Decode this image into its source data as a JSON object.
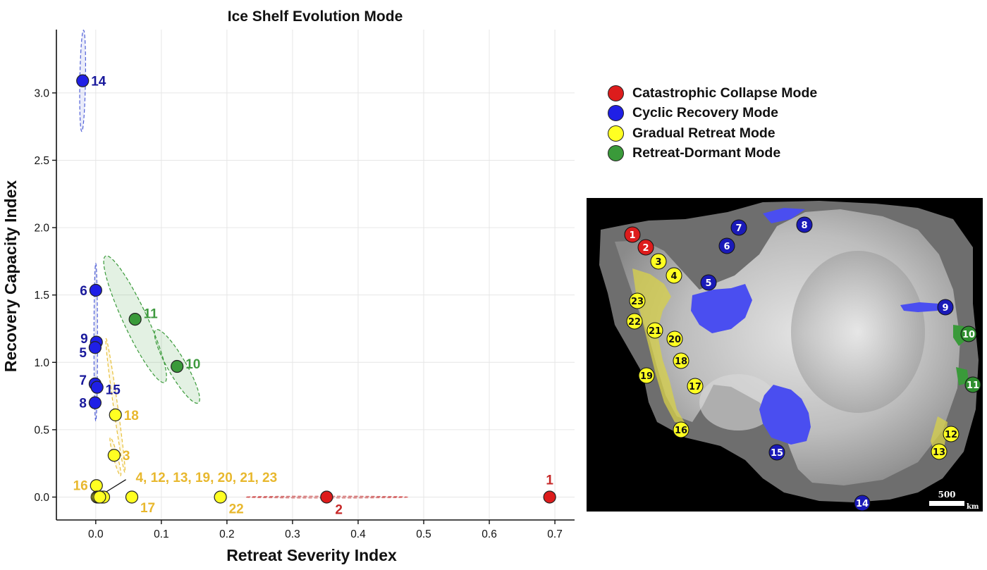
{
  "chart_data": {
    "type": "scatter",
    "title": "Ice Shelf Evolution Mode",
    "xlabel": "Retreat Severity Index",
    "ylabel": "Recovery Capacity Index",
    "xlim": [
      -0.06,
      0.73
    ],
    "ylim": [
      -0.17,
      3.47
    ],
    "xticks": [
      0.0,
      0.1,
      0.2,
      0.3,
      0.4,
      0.5,
      0.6,
      0.7
    ],
    "xtick_labels": [
      "0.0",
      "0.1",
      "0.2",
      "0.3",
      "0.4",
      "0.5",
      "0.6",
      "0.7"
    ],
    "yticks": [
      0.0,
      0.5,
      1.0,
      1.5,
      2.0,
      2.5,
      3.0
    ],
    "ytick_labels": [
      "0.0",
      "0.5",
      "1.0",
      "1.5",
      "2.0",
      "2.5",
      "3.0"
    ],
    "grid": true,
    "legend_position": "right",
    "colors": {
      "red": "#dd1c1c",
      "blue": "#1f1fe6",
      "yellow": "#ffff22",
      "green": "#3a9a3a",
      "red_text": "#c62828",
      "blue_text": "#1a1a9c",
      "yellow_text": "#e8b82e",
      "green_text": "#3f9a3f"
    },
    "series": [
      {
        "name": "Catastrophic Collapse Mode",
        "color": "red",
        "points": [
          {
            "label": "1",
            "x": 0.692,
            "y": 0.0
          },
          {
            "label": "2",
            "x": 0.352,
            "y": 0.0
          }
        ]
      },
      {
        "name": "Cyclic Recovery Mode",
        "color": "blue",
        "points": [
          {
            "label": "14",
            "x": -0.02,
            "y": 3.09
          },
          {
            "label": "6",
            "x": 0.0,
            "y": 1.535
          },
          {
            "label": "9",
            "x": 0.001,
            "y": 1.15
          },
          {
            "label": "5",
            "x": -0.001,
            "y": 1.11
          },
          {
            "label": "7",
            "x": -0.001,
            "y": 0.84
          },
          {
            "label": "15",
            "x": 0.002,
            "y": 0.815
          },
          {
            "label": "8",
            "x": -0.001,
            "y": 0.7
          }
        ]
      },
      {
        "name": "Gradual Retreat Mode",
        "color": "yellow",
        "points": [
          {
            "label": "18",
            "x": 0.03,
            "y": 0.61
          },
          {
            "label": "3",
            "x": 0.028,
            "y": 0.31
          },
          {
            "label": "16",
            "x": 0.001,
            "y": 0.085
          },
          {
            "label": "17",
            "x": 0.055,
            "y": 0.0
          },
          {
            "label": "22",
            "x": 0.19,
            "y": 0.0
          },
          {
            "label": "4",
            "x": 0.002,
            "y": 0.0
          },
          {
            "label": "12",
            "x": 0.005,
            "y": 0.0
          },
          {
            "label": "13",
            "x": 0.008,
            "y": 0.0
          },
          {
            "label": "19",
            "x": 0.01,
            "y": 0.0
          },
          {
            "label": "20",
            "x": 0.012,
            "y": 0.0
          },
          {
            "label": "21",
            "x": 0.004,
            "y": 0.0
          },
          {
            "label": "23",
            "x": 0.006,
            "y": 0.0
          }
        ]
      },
      {
        "name": "Retreat-Dormant Mode",
        "color": "green",
        "points": [
          {
            "label": "11",
            "x": 0.06,
            "y": 1.32
          },
          {
            "label": "10",
            "x": 0.124,
            "y": 0.97
          }
        ]
      }
    ],
    "annotations": [
      {
        "text": "14",
        "color": "blue_text",
        "x": -0.02,
        "y": 3.09,
        "side": "right"
      },
      {
        "text": "6",
        "color": "blue_text",
        "x": 0.0,
        "y": 1.535,
        "side": "left"
      },
      {
        "text": "9",
        "color": "blue_text",
        "x": 0.001,
        "y": 1.18,
        "side": "left"
      },
      {
        "text": "5",
        "color": "blue_text",
        "x": -0.001,
        "y": 1.075,
        "side": "left"
      },
      {
        "text": "7",
        "color": "blue_text",
        "x": -0.001,
        "y": 0.87,
        "side": "left"
      },
      {
        "text": "15",
        "color": "blue_text",
        "x": 0.002,
        "y": 0.8,
        "side": "right"
      },
      {
        "text": "8",
        "color": "blue_text",
        "x": -0.001,
        "y": 0.7,
        "side": "left"
      },
      {
        "text": "11",
        "color": "green_text",
        "x": 0.06,
        "y": 1.365,
        "side": "right"
      },
      {
        "text": "10",
        "color": "green_text",
        "x": 0.124,
        "y": 0.99,
        "side": "right"
      },
      {
        "text": "18",
        "color": "yellow_text",
        "x": 0.03,
        "y": 0.61,
        "side": "right"
      },
      {
        "text": "3",
        "color": "yellow_text",
        "x": 0.028,
        "y": 0.31,
        "side": "right"
      },
      {
        "text": "16",
        "color": "yellow_text",
        "x": 0.001,
        "y": 0.09,
        "side": "left"
      },
      {
        "text": "4, 12, 13, 19, 20, 21, 23",
        "color": "yellow_text",
        "x": 0.048,
        "y": 0.15,
        "side": "right"
      },
      {
        "text": "17",
        "color": "yellow_text",
        "x": 0.055,
        "y": -0.075,
        "side": "right"
      },
      {
        "text": "22",
        "color": "yellow_text",
        "x": 0.19,
        "y": -0.085,
        "side": "right"
      },
      {
        "text": "1",
        "color": "red_text",
        "x": 0.692,
        "y": 0.13,
        "side": "center"
      },
      {
        "text": "2",
        "color": "red_text",
        "x": 0.352,
        "y": -0.09,
        "side": "right"
      }
    ],
    "ellipses": [
      {
        "cx": -0.02,
        "cy": 3.09,
        "rx_px": 4,
        "ry_px": 72,
        "angle": 1,
        "color": "blue"
      },
      {
        "cx": 0.0,
        "cy": 1.15,
        "rx_px": 2.5,
        "ry_px": 112,
        "angle": 0,
        "color": "blue"
      },
      {
        "cx": 0.06,
        "cy": 1.32,
        "rx_px": 17,
        "ry_px": 99,
        "angle": -25,
        "color": "green"
      },
      {
        "cx": 0.124,
        "cy": 0.97,
        "rx_px": 13,
        "ry_px": 60,
        "angle": -30,
        "color": "green"
      },
      {
        "cx": 0.03,
        "cy": 0.68,
        "rx_px": 3,
        "ry_px": 96,
        "angle": -8,
        "color": "yellow"
      },
      {
        "cx": 0.03,
        "cy": 0.3,
        "rx_px": 3,
        "ry_px": 28,
        "angle": -15,
        "color": "yellow"
      },
      {
        "cx": 0.352,
        "cy": 0.0,
        "rx_px": 115,
        "ry_px": 1.2,
        "angle": 0,
        "color": "red"
      }
    ]
  },
  "legend": {
    "items": [
      {
        "label": "Catastrophic Collapse Mode",
        "color": "#dd1c1c"
      },
      {
        "label": "Cyclic Recovery Mode",
        "color": "#1f1fe6"
      },
      {
        "label": "Gradual Retreat Mode",
        "color": "#ffff22"
      },
      {
        "label": "Retreat-Dormant Mode",
        "color": "#3a9a3a"
      }
    ]
  },
  "map": {
    "scale_label": "500",
    "scale_unit": "km",
    "markers": [
      {
        "label": "1",
        "color": "red"
      },
      {
        "label": "2",
        "color": "red"
      },
      {
        "label": "3",
        "color": "yellow"
      },
      {
        "label": "4",
        "color": "yellow"
      },
      {
        "label": "5",
        "color": "blue"
      },
      {
        "label": "6",
        "color": "blue"
      },
      {
        "label": "7",
        "color": "blue"
      },
      {
        "label": "8",
        "color": "blue"
      },
      {
        "label": "9",
        "color": "blue"
      },
      {
        "label": "10",
        "color": "green"
      },
      {
        "label": "11",
        "color": "green"
      },
      {
        "label": "12",
        "color": "yellow"
      },
      {
        "label": "13",
        "color": "yellow"
      },
      {
        "label": "14",
        "color": "blue"
      },
      {
        "label": "15",
        "color": "blue"
      },
      {
        "label": "16",
        "color": "yellow"
      },
      {
        "label": "17",
        "color": "yellow"
      },
      {
        "label": "18",
        "color": "yellow"
      },
      {
        "label": "19",
        "color": "yellow"
      },
      {
        "label": "20",
        "color": "yellow"
      },
      {
        "label": "21",
        "color": "yellow"
      },
      {
        "label": "22",
        "color": "yellow"
      },
      {
        "label": "23",
        "color": "yellow"
      }
    ]
  }
}
